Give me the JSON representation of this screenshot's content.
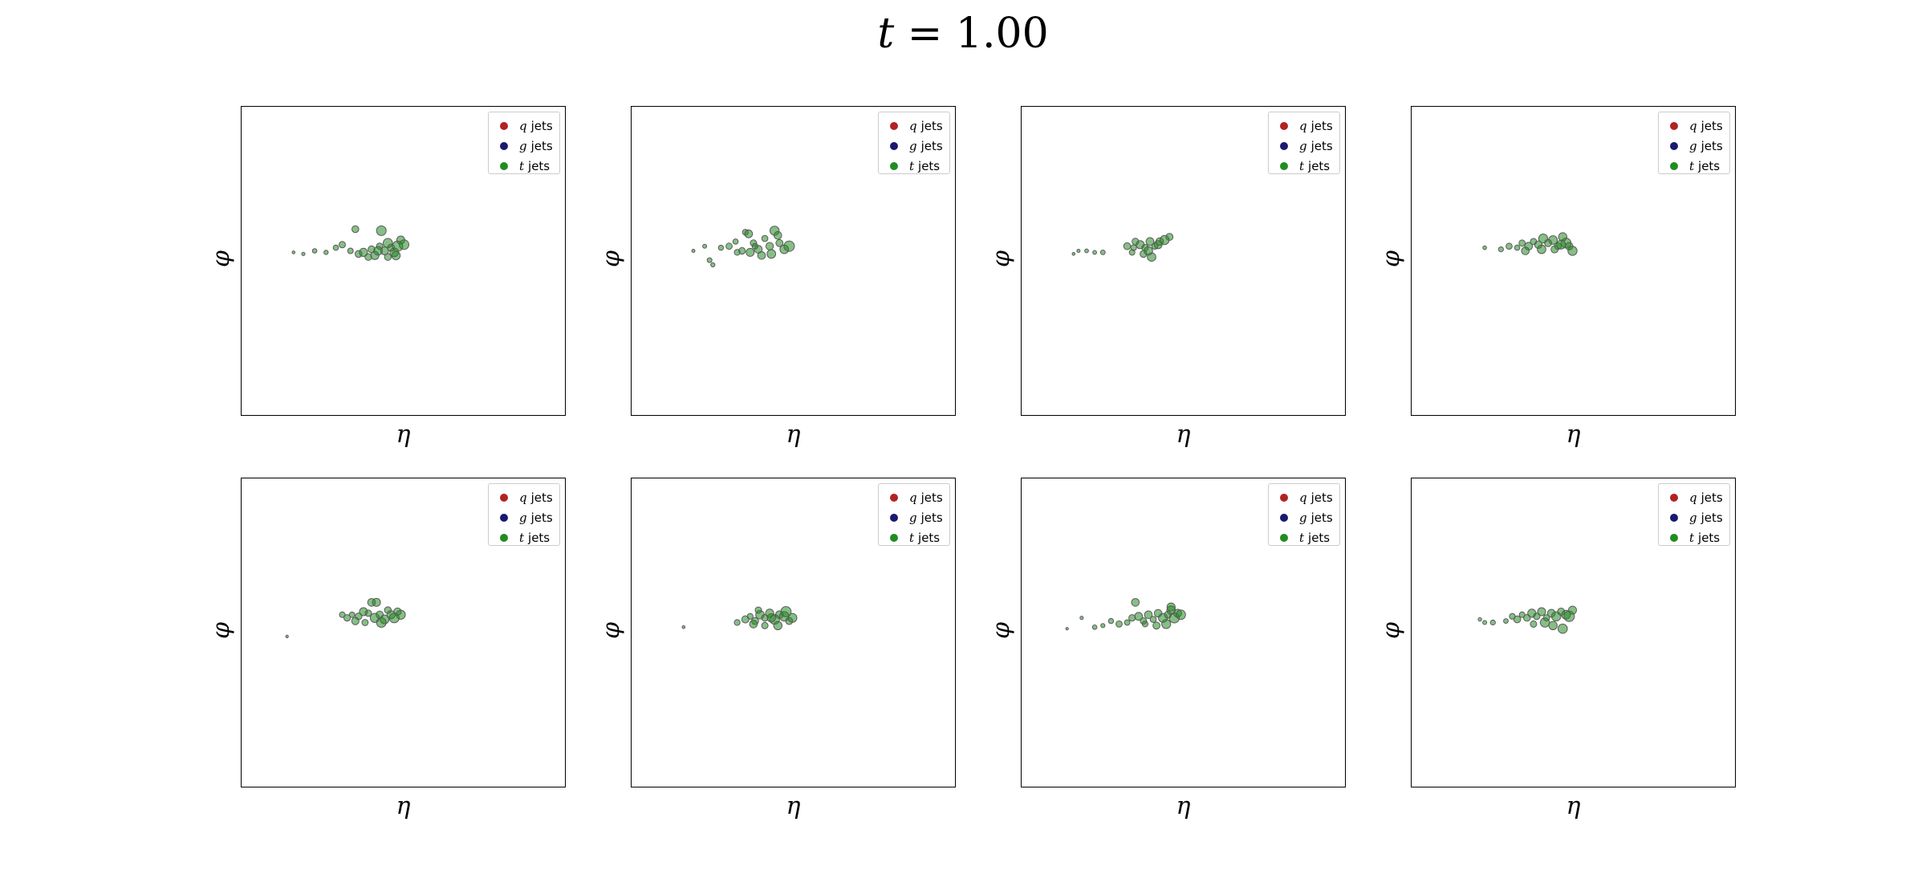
{
  "title": {
    "prefix": "t",
    "equals": " = ",
    "value": "1.00"
  },
  "legend": [
    {
      "symbol": "q",
      "label": "jets",
      "color": "#b22222"
    },
    {
      "symbol": "g",
      "label": "jets",
      "color": "#191970"
    },
    {
      "symbol": "t",
      "label": "jets",
      "color": "#228b22"
    }
  ],
  "chart_data": [
    {
      "type": "scatter",
      "xlabel": "η",
      "ylabel": "φ",
      "series": [
        {
          "color": "#228b22",
          "x": [
            -0.68,
            -0.62,
            -0.55,
            -0.48,
            -0.42,
            -0.38,
            -0.33,
            -0.28,
            -0.25,
            -0.2,
            -0.18,
            -0.15,
            -0.12,
            -0.1,
            -0.08,
            -0.06,
            -0.04,
            -0.02,
            0.0,
            -0.14,
            -0.22,
            -0.3,
            -0.1,
            -0.05,
            -0.16
          ],
          "y": [
            0.06,
            0.05,
            0.07,
            0.06,
            0.09,
            0.11,
            0.07,
            0.05,
            0.06,
            0.08,
            0.04,
            0.1,
            0.07,
            0.12,
            0.09,
            0.06,
            0.1,
            0.14,
            0.11,
            0.2,
            0.03,
            0.21,
            0.03,
            0.04,
            0.07
          ]
        }
      ]
    },
    {
      "type": "scatter",
      "xlabel": "η",
      "ylabel": "φ",
      "series": [
        {
          "color": "#228b22",
          "x": [
            -0.62,
            -0.55,
            -0.52,
            -0.5,
            -0.45,
            -0.4,
            -0.36,
            -0.32,
            -0.28,
            -0.25,
            -0.22,
            -0.18,
            -0.15,
            -0.12,
            -0.09,
            -0.06,
            -0.03,
            -0.3,
            -0.2,
            -0.27,
            -0.1,
            -0.14,
            -0.24,
            -0.35
          ],
          "y": [
            0.07,
            0.1,
            0.01,
            -0.02,
            0.09,
            0.1,
            0.13,
            0.07,
            0.18,
            0.12,
            0.08,
            0.15,
            0.1,
            0.2,
            0.12,
            0.08,
            0.1,
            0.19,
            0.04,
            0.06,
            0.17,
            0.05,
            0.1,
            0.06
          ]
        }
      ]
    },
    {
      "type": "scatter",
      "xlabel": "η",
      "ylabel": "φ",
      "series": [
        {
          "color": "#228b22",
          "x": [
            -0.68,
            -0.65,
            -0.6,
            -0.55,
            -0.5,
            -0.35,
            -0.32,
            -0.3,
            -0.27,
            -0.24,
            -0.21,
            -0.18,
            -0.15,
            -0.12,
            -0.09,
            -0.25,
            -0.2,
            -0.31,
            -0.16,
            -0.22
          ],
          "y": [
            0.05,
            0.07,
            0.07,
            0.06,
            0.06,
            0.1,
            0.06,
            0.13,
            0.11,
            0.09,
            0.13,
            0.1,
            0.13,
            0.14,
            0.16,
            0.05,
            0.03,
            0.09,
            0.11,
            0.07
          ]
        }
      ]
    },
    {
      "type": "scatter",
      "xlabel": "η",
      "ylabel": "φ",
      "series": [
        {
          "color": "#228b22",
          "x": [
            -0.55,
            -0.45,
            -0.4,
            -0.35,
            -0.32,
            -0.28,
            -0.25,
            -0.22,
            -0.19,
            -0.16,
            -0.13,
            -0.1,
            -0.07,
            -0.05,
            -0.03,
            -0.01,
            -0.2,
            -0.12,
            -0.08,
            -0.3
          ],
          "y": [
            0.09,
            0.08,
            0.1,
            0.09,
            0.12,
            0.1,
            0.13,
            0.11,
            0.15,
            0.12,
            0.14,
            0.1,
            0.16,
            0.12,
            0.1,
            0.07,
            0.08,
            0.08,
            0.11,
            0.07
          ]
        }
      ]
    },
    {
      "type": "scatter",
      "xlabel": "η",
      "ylabel": "φ",
      "series": [
        {
          "color": "#228b22",
          "x": [
            -0.72,
            -0.38,
            -0.35,
            -0.32,
            -0.28,
            -0.25,
            -0.22,
            -0.2,
            -0.18,
            -0.15,
            -0.12,
            -0.1,
            -0.08,
            -0.06,
            -0.04,
            -0.02,
            -0.3,
            -0.24,
            -0.17,
            -0.14
          ],
          "y": [
            -0.02,
            0.12,
            0.1,
            0.12,
            0.11,
            0.14,
            0.13,
            0.2,
            0.1,
            0.12,
            0.09,
            0.15,
            0.12,
            0.1,
            0.14,
            0.12,
            0.08,
            0.07,
            0.2,
            0.07
          ]
        }
      ]
    },
    {
      "type": "scatter",
      "xlabel": "η",
      "ylabel": "φ",
      "series": [
        {
          "color": "#228b22",
          "x": [
            -0.68,
            -0.35,
            -0.3,
            -0.27,
            -0.24,
            -0.21,
            -0.18,
            -0.15,
            -0.12,
            -0.09,
            -0.06,
            -0.03,
            -0.01,
            -0.25,
            -0.18,
            -0.1,
            -0.05,
            -0.22,
            -0.14
          ],
          "y": [
            0.04,
            0.07,
            0.09,
            0.11,
            0.08,
            0.12,
            0.1,
            0.13,
            0.09,
            0.12,
            0.11,
            0.08,
            0.1,
            0.06,
            0.05,
            0.05,
            0.14,
            0.15,
            0.1
          ]
        }
      ]
    },
    {
      "type": "scatter",
      "xlabel": "η",
      "ylabel": "φ",
      "series": [
        {
          "color": "#228b22",
          "x": [
            -0.72,
            -0.63,
            -0.55,
            -0.5,
            -0.45,
            -0.4,
            -0.35,
            -0.32,
            -0.28,
            -0.25,
            -0.22,
            -0.19,
            -0.16,
            -0.13,
            -0.1,
            -0.08,
            -0.06,
            -0.04,
            -0.02,
            -0.3,
            -0.17,
            -0.11,
            -0.24,
            -0.08
          ],
          "y": [
            0.03,
            0.1,
            0.04,
            0.05,
            0.08,
            0.06,
            0.07,
            0.1,
            0.11,
            0.08,
            0.12,
            0.09,
            0.13,
            0.1,
            0.12,
            0.15,
            0.1,
            0.13,
            0.12,
            0.2,
            0.05,
            0.06,
            0.06,
            0.17
          ]
        }
      ]
    },
    {
      "type": "scatter",
      "xlabel": "η",
      "ylabel": "φ",
      "series": [
        {
          "color": "#228b22",
          "x": [
            -0.58,
            -0.55,
            -0.5,
            -0.42,
            -0.38,
            -0.35,
            -0.32,
            -0.29,
            -0.26,
            -0.23,
            -0.2,
            -0.17,
            -0.14,
            -0.11,
            -0.08,
            -0.05,
            -0.03,
            -0.01,
            -0.13,
            -0.18,
            -0.25,
            -0.07
          ],
          "y": [
            0.09,
            0.07,
            0.07,
            0.08,
            0.11,
            0.09,
            0.12,
            0.1,
            0.13,
            0.11,
            0.14,
            0.1,
            0.13,
            0.11,
            0.14,
            0.12,
            0.11,
            0.15,
            0.05,
            0.07,
            0.06,
            0.03
          ]
        }
      ]
    }
  ]
}
